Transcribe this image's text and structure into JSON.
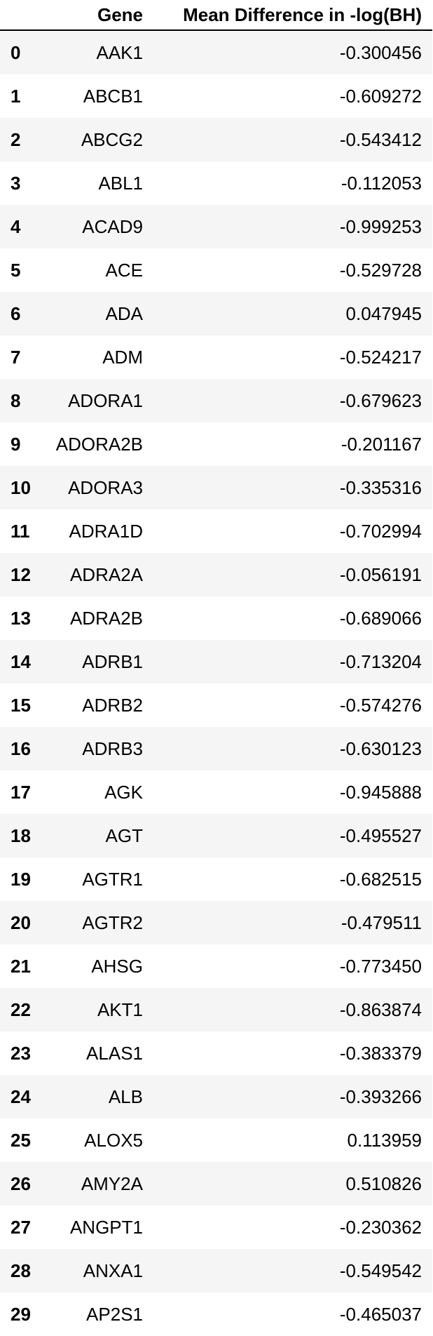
{
  "table": {
    "columns": [
      "",
      "Gene",
      "Mean Difference in -log(BH)"
    ],
    "rows": [
      {
        "index": "0",
        "gene": "AAK1",
        "value": "-0.300456"
      },
      {
        "index": "1",
        "gene": "ABCB1",
        "value": "-0.609272"
      },
      {
        "index": "2",
        "gene": "ABCG2",
        "value": "-0.543412"
      },
      {
        "index": "3",
        "gene": "ABL1",
        "value": "-0.112053"
      },
      {
        "index": "4",
        "gene": "ACAD9",
        "value": "-0.999253"
      },
      {
        "index": "5",
        "gene": "ACE",
        "value": "-0.529728"
      },
      {
        "index": "6",
        "gene": "ADA",
        "value": "0.047945"
      },
      {
        "index": "7",
        "gene": "ADM",
        "value": "-0.524217"
      },
      {
        "index": "8",
        "gene": "ADORA1",
        "value": "-0.679623"
      },
      {
        "index": "9",
        "gene": "ADORA2B",
        "value": "-0.201167"
      },
      {
        "index": "10",
        "gene": "ADORA3",
        "value": "-0.335316"
      },
      {
        "index": "11",
        "gene": "ADRA1D",
        "value": "-0.702994"
      },
      {
        "index": "12",
        "gene": "ADRA2A",
        "value": "-0.056191"
      },
      {
        "index": "13",
        "gene": "ADRA2B",
        "value": "-0.689066"
      },
      {
        "index": "14",
        "gene": "ADRB1",
        "value": "-0.713204"
      },
      {
        "index": "15",
        "gene": "ADRB2",
        "value": "-0.574276"
      },
      {
        "index": "16",
        "gene": "ADRB3",
        "value": "-0.630123"
      },
      {
        "index": "17",
        "gene": "AGK",
        "value": "-0.945888"
      },
      {
        "index": "18",
        "gene": "AGT",
        "value": "-0.495527"
      },
      {
        "index": "19",
        "gene": "AGTR1",
        "value": "-0.682515"
      },
      {
        "index": "20",
        "gene": "AGTR2",
        "value": "-0.479511"
      },
      {
        "index": "21",
        "gene": "AHSG",
        "value": "-0.773450"
      },
      {
        "index": "22",
        "gene": "AKT1",
        "value": "-0.863874"
      },
      {
        "index": "23",
        "gene": "ALAS1",
        "value": "-0.383379"
      },
      {
        "index": "24",
        "gene": "ALB",
        "value": "-0.393266"
      },
      {
        "index": "25",
        "gene": "ALOX5",
        "value": "0.113959"
      },
      {
        "index": "26",
        "gene": "AMY2A",
        "value": "0.510826"
      },
      {
        "index": "27",
        "gene": "ANGPT1",
        "value": "-0.230362"
      },
      {
        "index": "28",
        "gene": "ANXA1",
        "value": "-0.549542"
      },
      {
        "index": "29",
        "gene": "AP2S1",
        "value": "-0.465037"
      }
    ]
  }
}
